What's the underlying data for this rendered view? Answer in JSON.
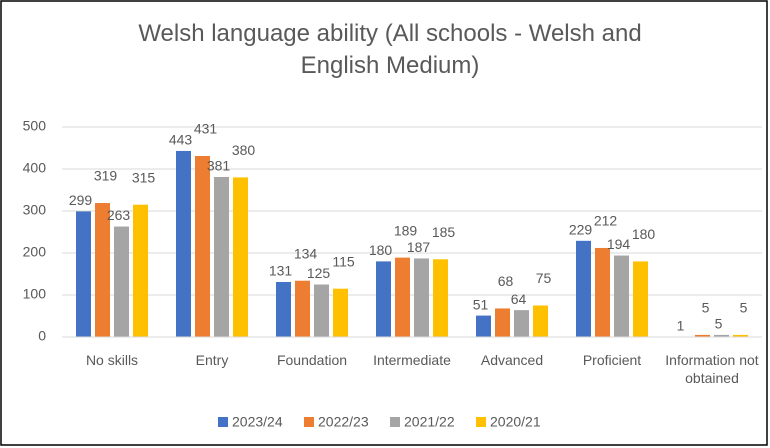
{
  "chart_data": {
    "type": "bar",
    "title": "Welsh language ability (All schools - Welsh and English Medium)",
    "categories": [
      "No skills",
      "Entry",
      "Foundation",
      "Intermediate",
      "Advanced",
      "Proficient",
      "Information not obtained"
    ],
    "series": [
      {
        "name": "2023/24",
        "color": "#4472c4",
        "values": [
          299,
          443,
          131,
          180,
          51,
          229,
          1
        ]
      },
      {
        "name": "2022/23",
        "color": "#ed7d31",
        "values": [
          319,
          431,
          134,
          189,
          68,
          212,
          5
        ]
      },
      {
        "name": "2021/22",
        "color": "#a5a5a5",
        "values": [
          263,
          381,
          125,
          187,
          64,
          194,
          5
        ]
      },
      {
        "name": "2020/21",
        "color": "#ffc000",
        "values": [
          315,
          380,
          115,
          185,
          75,
          180,
          5
        ]
      }
    ],
    "ylim": [
      0,
      500
    ],
    "yticks": [
      0,
      100,
      200,
      300,
      400,
      500
    ],
    "grid": true,
    "legend": "bottom"
  }
}
